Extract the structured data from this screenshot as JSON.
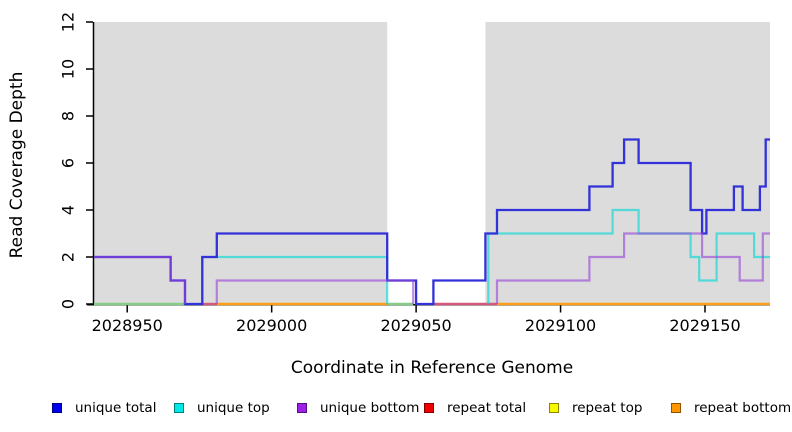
{
  "figure": {
    "background": "#ffffff"
  },
  "y_axis": {
    "label": "Read Coverage Depth",
    "ticks": [
      0,
      2,
      4,
      6,
      8,
      10,
      12
    ],
    "range": [
      0,
      12
    ]
  },
  "x_axis": {
    "label": "Coordinate in Reference Genome",
    "ticks": [
      2028950,
      2029000,
      2029050,
      2029100,
      2029150
    ],
    "range": [
      2028938.5,
      2029172.5
    ]
  },
  "panel": {
    "background": "#dcdcdc",
    "white_band": {
      "from": 2029040,
      "to": 2029074
    }
  },
  "legend": {
    "items": [
      {
        "label": "unique total",
        "color": "#0000f0"
      },
      {
        "label": "unique top",
        "color": "#00e8e8"
      },
      {
        "label": "unique bottom",
        "color": "#9c22e8"
      },
      {
        "label": "repeat total",
        "color": "#f00000"
      },
      {
        "label": "repeat top",
        "color": "#f8f800"
      },
      {
        "label": "repeat bottom",
        "color": "#ff9800"
      }
    ]
  },
  "chart_data": {
    "type": "line",
    "subtype": "step-post",
    "title": "",
    "xlabel": "Coordinate in Reference Genome",
    "ylabel": "Read Coverage Depth",
    "xlim": [
      2028938.5,
      2029172.5
    ],
    "ylim": [
      0,
      12
    ],
    "grid": false,
    "legend_position": "bottom",
    "x_end": 2029172.5,
    "series": [
      {
        "name": "unique total",
        "color": "#3232d8",
        "width": 2.3,
        "skip_zero": false,
        "points": [
          [
            2028938.5,
            2
          ],
          [
            2028965,
            1
          ],
          [
            2028970,
            0
          ],
          [
            2028976,
            2
          ],
          [
            2028981,
            3
          ],
          [
            2029040,
            1
          ],
          [
            2029050,
            0
          ],
          [
            2029056,
            1
          ],
          [
            2029074,
            3
          ],
          [
            2029078,
            4
          ],
          [
            2029110,
            5
          ],
          [
            2029118,
            6
          ],
          [
            2029122,
            7
          ],
          [
            2029127,
            6
          ],
          [
            2029145,
            4
          ],
          [
            2029149,
            3
          ],
          [
            2029150.5,
            4
          ],
          [
            2029160,
            5
          ],
          [
            2029163,
            4
          ],
          [
            2029169,
            5
          ],
          [
            2029171,
            7
          ]
        ]
      },
      {
        "name": "unique top",
        "color": "rgba(0,214,214,0.62)",
        "width": 2.2,
        "skip_zero": true,
        "points": [
          [
            2028938.5,
            0
          ],
          [
            2028976,
            2
          ],
          [
            2029040,
            0
          ],
          [
            2029075,
            3
          ],
          [
            2029118,
            4
          ],
          [
            2029127,
            3
          ],
          [
            2029145,
            2
          ],
          [
            2029148,
            1
          ],
          [
            2029154,
            3
          ],
          [
            2029167,
            2
          ]
        ]
      },
      {
        "name": "unique bottom",
        "color": "rgba(150,70,215,0.62)",
        "width": 2.2,
        "skip_zero": true,
        "points": [
          [
            2028938.5,
            2
          ],
          [
            2028965,
            1
          ],
          [
            2028970,
            0
          ],
          [
            2028981,
            1
          ],
          [
            2029049,
            0
          ],
          [
            2029078,
            1
          ],
          [
            2029110,
            2
          ],
          [
            2029122,
            3
          ],
          [
            2029149,
            2
          ],
          [
            2029162,
            1
          ],
          [
            2029170,
            3
          ]
        ]
      },
      {
        "name": "repeat total",
        "color": "#d4597c",
        "width": 2.2,
        "skip_zero": true,
        "points": [
          [
            2028938.5,
            0
          ]
        ]
      },
      {
        "name": "repeat top",
        "color": "#e8e84a",
        "width": 2.2,
        "skip_zero": true,
        "points": [
          [
            2028938.5,
            0
          ]
        ]
      },
      {
        "name": "repeat bottom",
        "color": "#ff9e1a",
        "width": 2.5,
        "skip_zero": true,
        "points": [
          [
            2028938.5,
            0
          ]
        ]
      }
    ],
    "baseline_segments": [
      {
        "from": 2028938.5,
        "to": 2028970,
        "color": "#86cd8a"
      },
      {
        "from": 2028976,
        "to": 2028981,
        "color": "#d4597c"
      },
      {
        "from": 2028981,
        "to": 2029040,
        "color": "#ff9e1a"
      },
      {
        "from": 2029040,
        "to": 2029049,
        "color": "#86cd8a"
      },
      {
        "from": 2029056,
        "to": 2029078,
        "color": "#d4597c"
      },
      {
        "from": 2029078,
        "to": 2029172.5,
        "color": "#ff9e1a"
      }
    ]
  }
}
